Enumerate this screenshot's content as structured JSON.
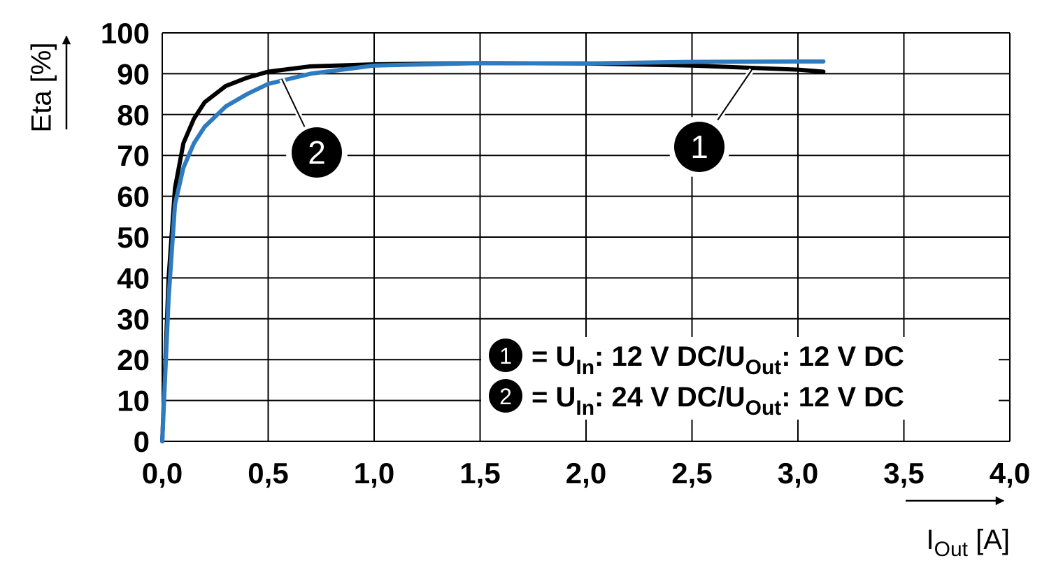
{
  "chart_data": {
    "type": "line",
    "ylabel": "Eta [%]",
    "xlabel": [
      "I",
      "Out",
      " [A]"
    ],
    "xlim": [
      0,
      4
    ],
    "ylim": [
      0,
      100
    ],
    "xticks": [
      {
        "value": 0,
        "label": "0,0"
      },
      {
        "value": 0.5,
        "label": "0,5"
      },
      {
        "value": 1,
        "label": "1,0"
      },
      {
        "value": 1.5,
        "label": "1,5"
      },
      {
        "value": 2,
        "label": "2,0"
      },
      {
        "value": 2.5,
        "label": "2,5"
      },
      {
        "value": 3,
        "label": "3,0"
      },
      {
        "value": 3.5,
        "label": "3,5"
      },
      {
        "value": 4,
        "label": "4,0"
      }
    ],
    "yticks": [
      0,
      10,
      20,
      30,
      40,
      50,
      60,
      70,
      80,
      90,
      100
    ],
    "grid": true,
    "series": [
      {
        "marker": "1",
        "name": [
          "= U",
          "In",
          ": 12 V DC/U",
          "Out",
          ": 12 V DC"
        ],
        "color": "#000000",
        "x": [
          0,
          0.03,
          0.06,
          0.1,
          0.15,
          0.2,
          0.3,
          0.4,
          0.5,
          0.7,
          1.0,
          1.5,
          2.0,
          2.5,
          3.0,
          3.12
        ],
        "values": [
          0,
          40,
          62,
          73,
          79,
          83,
          87,
          89,
          90.5,
          91.8,
          92.3,
          92.6,
          92.5,
          92,
          91,
          90.5
        ]
      },
      {
        "marker": "2",
        "name": [
          "= U",
          "In",
          ": 24 V DC/U",
          "Out",
          ": 12 V DC"
        ],
        "color": "#2f7bbf",
        "x": [
          0,
          0.03,
          0.06,
          0.1,
          0.15,
          0.2,
          0.3,
          0.4,
          0.5,
          0.7,
          1.0,
          1.5,
          2.0,
          2.5,
          3.0,
          3.12
        ],
        "values": [
          0,
          35,
          58,
          67,
          73,
          77,
          82,
          85,
          87.5,
          90,
          92,
          92.6,
          92.5,
          92.9,
          93,
          93
        ]
      }
    ]
  }
}
